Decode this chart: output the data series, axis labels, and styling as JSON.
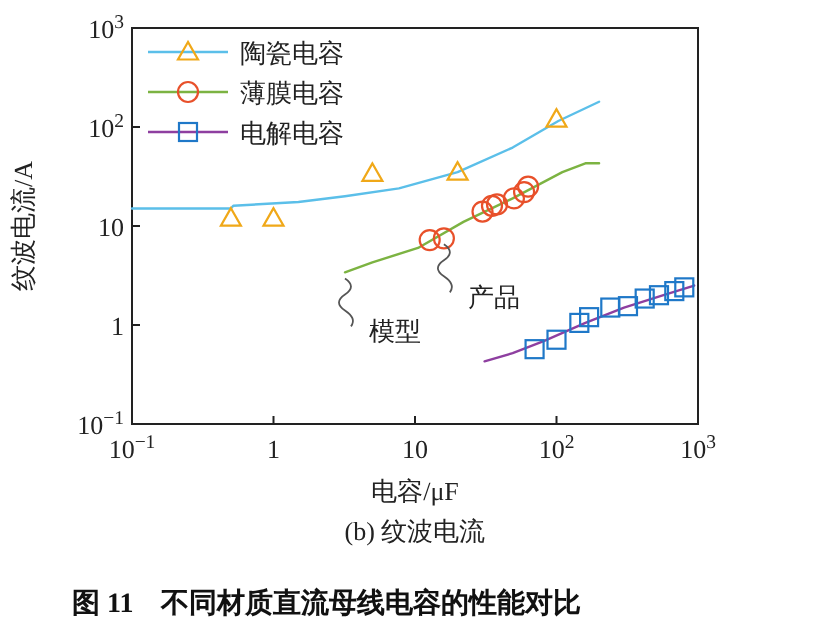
{
  "chart_data": {
    "type": "line",
    "title": "图 11　不同材质直流母线电容的性能对比",
    "subtitle": "(b) 纹波电流",
    "xlabel": "电容/μF",
    "ylabel": "纹波电流/A",
    "log": "xy",
    "xlim": [
      0.1,
      1000
    ],
    "ylim": [
      0.1,
      1000
    ],
    "xticks": [
      {
        "value": 0.1,
        "label": "10$^{−1}$"
      },
      1,
      10,
      {
        "value": 100,
        "label": "10$^{2}$"
      },
      {
        "value": 1000,
        "label": "10$^{3}$"
      }
    ],
    "yticks": [
      {
        "value": 0.1,
        "label": "10$^{−1}$"
      },
      1,
      10,
      {
        "value": 100,
        "label": "10$^{2}$"
      },
      {
        "value": 1000,
        "label": "10$^{3}$"
      }
    ],
    "grid": false,
    "legend": "top left",
    "series": [
      {
        "color": "#5bbfe9",
        "x": [
          0.1,
          0.5,
          0.52,
          1.5,
          3.2,
          7.7,
          20,
          49,
          103,
          200
        ],
        "values": [
          15,
          15,
          16,
          17.5,
          20,
          24,
          35,
          62,
          115,
          180
        ]
      },
      {
        "type": "scatter",
        "name": "陶瓷电容",
        "marker": "triangle",
        "color": "#f0a818",
        "x": [
          0.5,
          1,
          5,
          20,
          100
        ],
        "values": [
          12,
          12,
          34,
          35,
          120
        ]
      },
      {
        "color": "#7cb342",
        "x": [
          3.2,
          5,
          10.5,
          22,
          49,
          110,
          160,
          200
        ],
        "values": [
          3.4,
          4.3,
          6,
          11,
          19,
          35,
          43,
          43
        ]
      },
      {
        "type": "scatter",
        "name": "薄膜电容",
        "marker": "circle",
        "color": "#e8502a",
        "x": [
          12.7,
          16,
          30,
          35,
          38,
          50,
          59,
          63
        ],
        "values": [
          7.2,
          7.5,
          14,
          16,
          16.5,
          19,
          22,
          25
        ]
      },
      {
        "color": "#8e3fa0",
        "x": [
          31,
          49,
          82,
          160,
          300,
          570,
          940
        ],
        "values": [
          0.43,
          0.52,
          0.69,
          1.05,
          1.5,
          2.0,
          2.5
        ]
      },
      {
        "type": "scatter",
        "name": "电解电容",
        "marker": "square",
        "color": "#1f78c8",
        "x": [
          70,
          100,
          145,
          170,
          240,
          320,
          420,
          530,
          680,
          800
        ],
        "values": [
          0.57,
          0.71,
          1.05,
          1.2,
          1.5,
          1.55,
          1.85,
          2.0,
          2.2,
          2.4
        ]
      }
    ],
    "annotations": [
      {
        "text": "模型",
        "x": 3.2,
        "y": 3.4
      },
      {
        "text": "产品",
        "x": 16,
        "y": 7.5
      }
    ]
  }
}
